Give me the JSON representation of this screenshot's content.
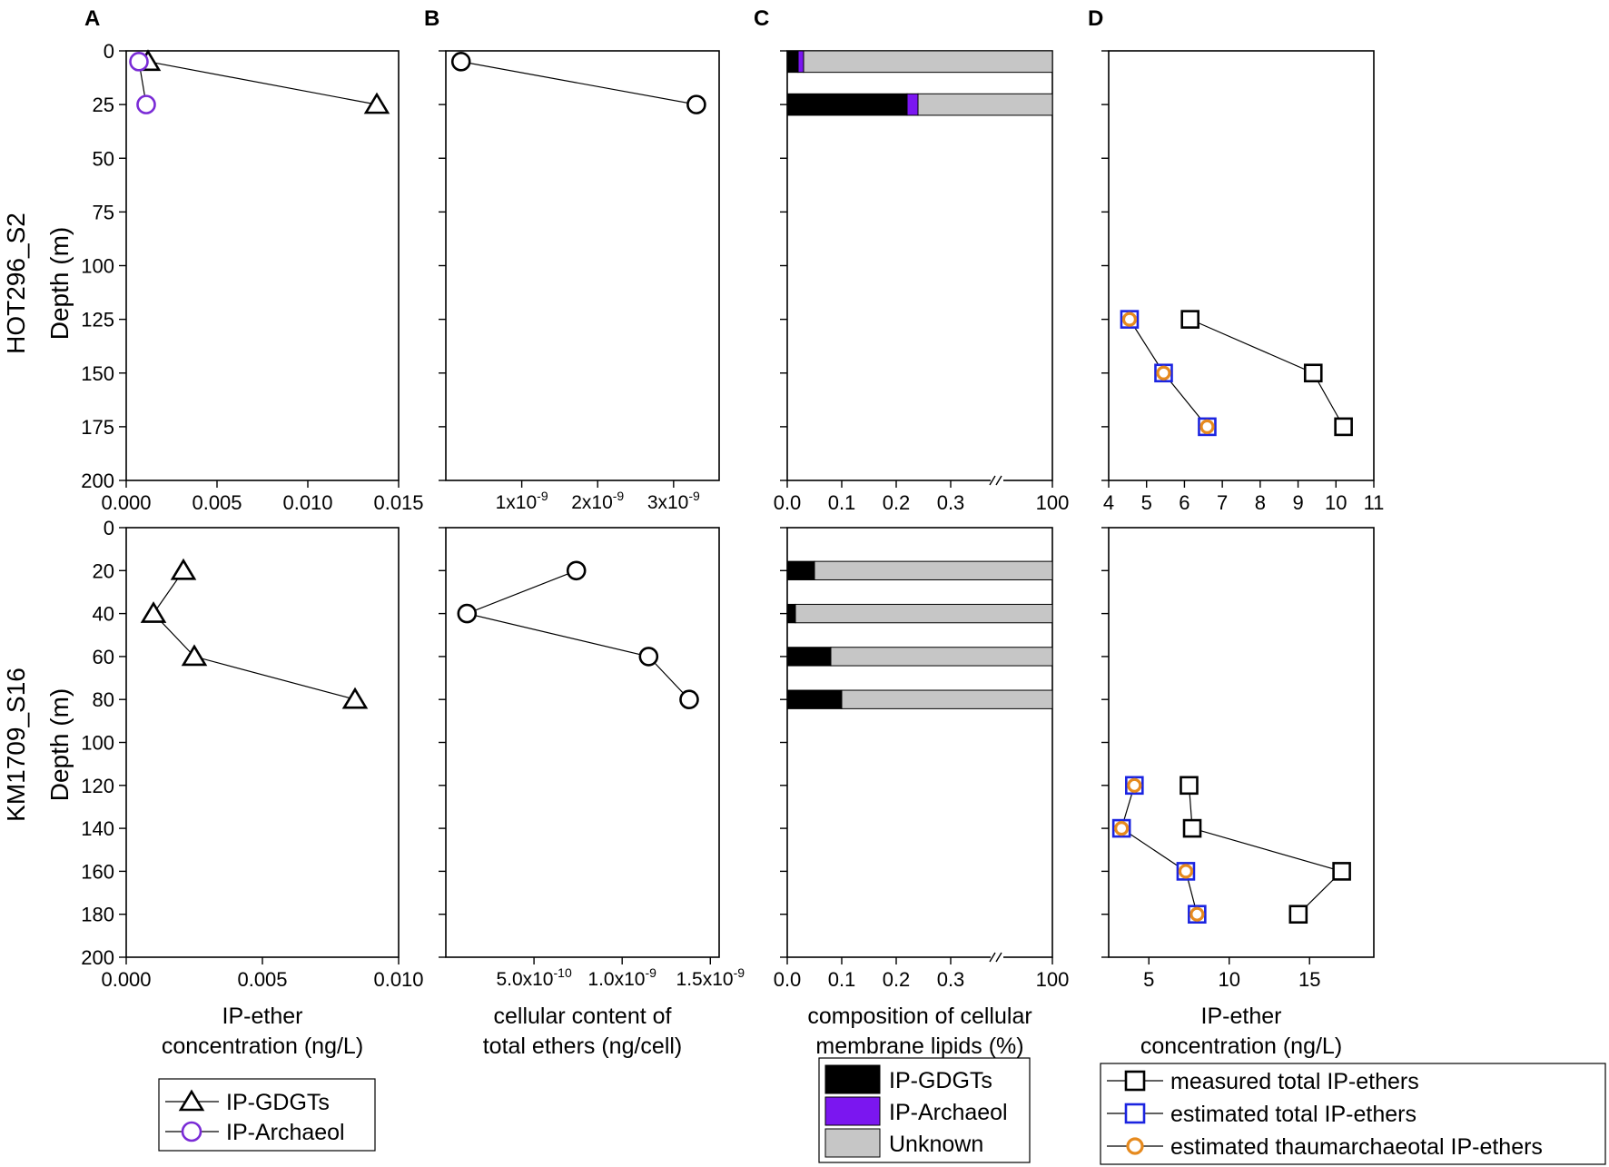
{
  "panel_letters": [
    "A",
    "B",
    "C",
    "D"
  ],
  "row_labels": [
    {
      "station": "HOT296_S2",
      "axis": "Depth (m)"
    },
    {
      "station": "KM1709_S16",
      "axis": "Depth (m)"
    }
  ],
  "colors": {
    "triangle": "#000000",
    "archaeol_circle": "#7a2bd6",
    "bar_gdgt": "#000000",
    "bar_archaeol": "#7b16f0",
    "bar_unknown": "#c6c6c6",
    "square_measured": "#000000",
    "square_estimated": "#1b24e0",
    "orange_circle": "#e68a1e"
  },
  "legends": {
    "A": [
      {
        "label": "IP-GDGTs",
        "marker": "triangle",
        "color": "#000000"
      },
      {
        "label": "IP-Archaeol",
        "marker": "circle",
        "color": "#7a2bd6"
      }
    ],
    "C": [
      {
        "label": "IP-GDGTs",
        "color": "#000000"
      },
      {
        "label": "IP-Archaeol",
        "color": "#7b16f0"
      },
      {
        "label": "Unknown",
        "color": "#c6c6c6"
      }
    ],
    "D": [
      {
        "label": "measured total IP-ethers",
        "marker": "square-black"
      },
      {
        "label": "estimated total IP-ethers",
        "marker": "square-blue"
      },
      {
        "label": "estimated thaumarchaeotal IP-ethers",
        "marker": "circle-orange"
      }
    ]
  },
  "chart_data": [
    {
      "id": "A-top",
      "type": "scatter",
      "xlim": [
        0,
        0.015
      ],
      "ylim": [
        0,
        200
      ],
      "y_reversed": true,
      "xticks": [
        "0.000",
        "0.005",
        "0.010",
        "0.015"
      ],
      "xtick_values": [
        0,
        0.005,
        0.01,
        0.015
      ],
      "yticks": [
        "0",
        "25",
        "50",
        "75",
        "100",
        "125",
        "150",
        "175",
        "200"
      ],
      "ytick_values": [
        0,
        25,
        50,
        75,
        100,
        125,
        150,
        175,
        200
      ],
      "xlabel": "",
      "ylabel": "Depth (m)",
      "series": [
        {
          "name": "IP-GDGTs",
          "marker": "triangle",
          "points": [
            {
              "x": 0.0012,
              "y": 5
            },
            {
              "x": 0.0138,
              "y": 25
            }
          ]
        },
        {
          "name": "IP-Archaeol",
          "marker": "circle-purple",
          "points": [
            {
              "x": 0.0007,
              "y": 5
            },
            {
              "x": 0.0011,
              "y": 25
            }
          ]
        }
      ]
    },
    {
      "id": "A-bottom",
      "type": "scatter",
      "xlim": [
        0,
        0.01
      ],
      "ylim": [
        0,
        200
      ],
      "y_reversed": true,
      "xticks": [
        "0.000",
        "0.005",
        "0.010"
      ],
      "xtick_values": [
        0,
        0.005,
        0.01
      ],
      "yticks": [
        "0",
        "20",
        "40",
        "60",
        "80",
        "100",
        "120",
        "140",
        "160",
        "180",
        "200"
      ],
      "ytick_values": [
        0,
        20,
        40,
        60,
        80,
        100,
        120,
        140,
        160,
        180,
        200
      ],
      "xlabel": "IP-ether\nconcentration (ng/L)",
      "ylabel": "Depth (m)",
      "series": [
        {
          "name": "IP-GDGTs",
          "marker": "triangle",
          "points": [
            {
              "x": 0.0021,
              "y": 20
            },
            {
              "x": 0.001,
              "y": 40
            },
            {
              "x": 0.0025,
              "y": 60
            },
            {
              "x": 0.0084,
              "y": 80
            }
          ]
        }
      ]
    },
    {
      "id": "B-top",
      "type": "scatter",
      "xlim": [
        0,
        3.6e-09
      ],
      "ylim": [
        0,
        200
      ],
      "y_reversed": true,
      "xticks": [
        {
          "m": "1x10",
          "e": "-9"
        },
        {
          "m": "2x10",
          "e": "-9"
        },
        {
          "m": "3x10",
          "e": "-9"
        }
      ],
      "xtick_values": [
        1e-09,
        2e-09,
        3e-09
      ],
      "xlabel": "",
      "ylabel": "",
      "series": [
        {
          "name": "total ethers",
          "marker": "circle-black",
          "points": [
            {
              "x": 2e-10,
              "y": 5
            },
            {
              "x": 3.3e-09,
              "y": 25
            }
          ]
        }
      ]
    },
    {
      "id": "B-bottom",
      "type": "scatter",
      "xlim": [
        0,
        1.55e-09
      ],
      "ylim": [
        0,
        200
      ],
      "y_reversed": true,
      "xticks": [
        {
          "m": "5.0x10",
          "e": "-10"
        },
        {
          "m": "1.0x10",
          "e": "-9"
        },
        {
          "m": "1.5x10",
          "e": "-9"
        }
      ],
      "xtick_values": [
        5e-10,
        1e-09,
        1.5e-09
      ],
      "xlabel": "cellular content of\ntotal ethers (ng/cell)",
      "ylabel": "",
      "series": [
        {
          "name": "total ethers",
          "marker": "circle-black",
          "points": [
            {
              "x": 7.4e-10,
              "y": 20
            },
            {
              "x": 1.2e-10,
              "y": 40
            },
            {
              "x": 1.15e-09,
              "y": 60
            },
            {
              "x": 1.38e-09,
              "y": 80
            }
          ]
        }
      ]
    },
    {
      "id": "C-top",
      "type": "bar",
      "orientation": "horizontal",
      "stacked": true,
      "x_break": true,
      "xticks": [
        "0.0",
        "0.1",
        "0.2",
        "0.3",
        "100"
      ],
      "ylim": [
        0,
        200
      ],
      "y_reversed": true,
      "categories": [
        5,
        25
      ],
      "bar_half_height": 5,
      "series": [
        {
          "name": "IP-GDGTs",
          "values": [
            0.02,
            0.22
          ]
        },
        {
          "name": "IP-Archaeol",
          "values": [
            0.01,
            0.02
          ]
        },
        {
          "name": "Unknown",
          "values": [
            99.97,
            99.76
          ]
        }
      ]
    },
    {
      "id": "C-bottom",
      "type": "bar",
      "orientation": "horizontal",
      "stacked": true,
      "x_break": true,
      "xticks": [
        "0.0",
        "0.1",
        "0.2",
        "0.3",
        "100"
      ],
      "ylim": [
        0,
        200
      ],
      "y_reversed": true,
      "categories": [
        20,
        40,
        60,
        80
      ],
      "bar_half_height": 4.3,
      "xlabel": "composition of cellular\nmembrane lipids (%)",
      "series": [
        {
          "name": "IP-GDGTs",
          "values": [
            0.05,
            0.015,
            0.08,
            0.1
          ]
        },
        {
          "name": "IP-Archaeol",
          "values": [
            0,
            0,
            0,
            0
          ]
        },
        {
          "name": "Unknown",
          "values": [
            99.95,
            99.985,
            99.92,
            99.9
          ]
        }
      ]
    },
    {
      "id": "D-top",
      "type": "scatter",
      "xlim": [
        4,
        11
      ],
      "ylim": [
        0,
        200
      ],
      "y_reversed": true,
      "xticks": [
        "4",
        "5",
        "6",
        "7",
        "8",
        "9",
        "10",
        "11"
      ],
      "xtick_values": [
        4,
        5,
        6,
        7,
        8,
        9,
        10,
        11
      ],
      "xlabel": "",
      "ylabel": "",
      "series": [
        {
          "name": "measured total IP-ethers",
          "marker": "square-black",
          "points": [
            {
              "x": 6.15,
              "y": 125
            },
            {
              "x": 9.4,
              "y": 150
            },
            {
              "x": 10.2,
              "y": 175
            }
          ]
        },
        {
          "name": "estimated total IP-ethers",
          "marker": "square-blue",
          "points": [
            {
              "x": 4.55,
              "y": 125
            },
            {
              "x": 5.45,
              "y": 150
            },
            {
              "x": 6.6,
              "y": 175
            }
          ]
        },
        {
          "name": "estimated thaumarchaeotal IP-ethers",
          "marker": "circle-orange",
          "points": [
            {
              "x": 4.55,
              "y": 125
            },
            {
              "x": 5.45,
              "y": 150
            },
            {
              "x": 6.6,
              "y": 175
            }
          ]
        }
      ]
    },
    {
      "id": "D-bottom",
      "type": "scatter",
      "xlim": [
        2.5,
        19
      ],
      "ylim": [
        0,
        200
      ],
      "y_reversed": true,
      "xticks": [
        "5",
        "10",
        "15"
      ],
      "xtick_values": [
        5,
        10,
        15
      ],
      "xlabel": "IP-ether\nconcentration (ng/L)",
      "ylabel": "",
      "series": [
        {
          "name": "measured total IP-ethers",
          "marker": "square-black",
          "points": [
            {
              "x": 7.5,
              "y": 120
            },
            {
              "x": 7.7,
              "y": 140
            },
            {
              "x": 17,
              "y": 160
            },
            {
              "x": 14.3,
              "y": 180
            }
          ]
        },
        {
          "name": "estimated total IP-ethers",
          "marker": "square-blue",
          "points": [
            {
              "x": 4.1,
              "y": 120
            },
            {
              "x": 3.3,
              "y": 140
            },
            {
              "x": 7.3,
              "y": 160
            },
            {
              "x": 8,
              "y": 180
            }
          ]
        },
        {
          "name": "estimated thaumarchaeotal IP-ethers",
          "marker": "circle-orange",
          "points": [
            {
              "x": 4.1,
              "y": 120
            },
            {
              "x": 3.3,
              "y": 140
            },
            {
              "x": 7.3,
              "y": 160
            },
            {
              "x": 8,
              "y": 180
            }
          ]
        }
      ]
    }
  ]
}
